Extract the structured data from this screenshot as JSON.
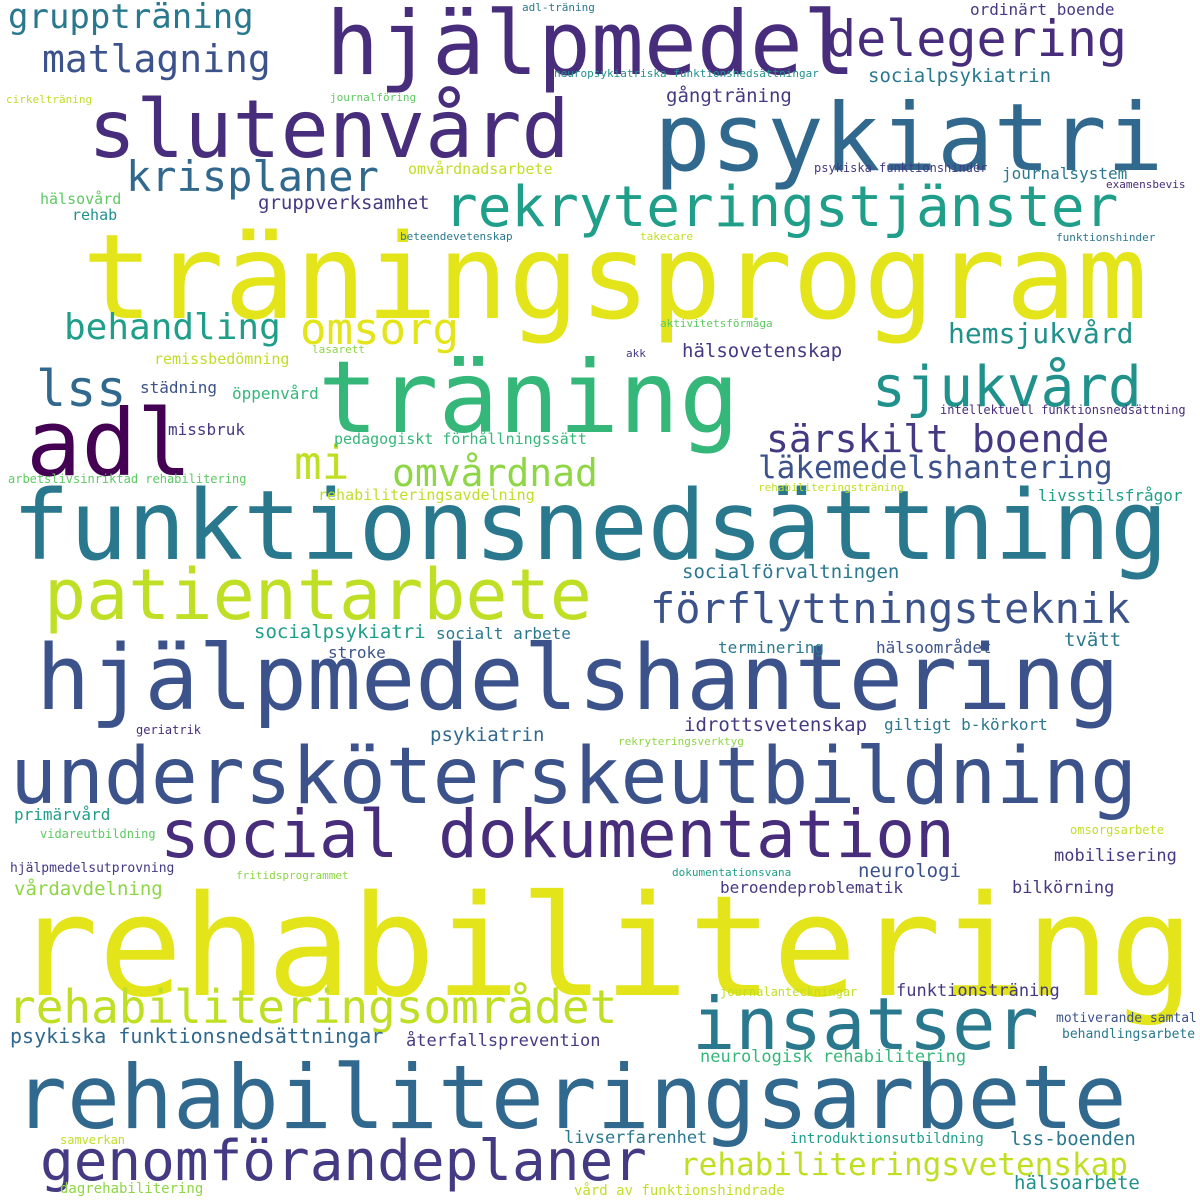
{
  "palette": {
    "c1": "#e3e419",
    "c2": "#bfdf25",
    "c3": "#8ed645",
    "c4": "#5ec962",
    "c5": "#35b779",
    "c6": "#1f9e89",
    "c7": "#21918c",
    "c8": "#2a788e",
    "c9": "#31688e",
    "c10": "#3b528b",
    "c11": "#443a83",
    "c12": "#472d7b",
    "c13": "#440154"
  },
  "words": [
    {
      "text": "rehabilitering",
      "color": "c1"
    },
    {
      "text": "träningsprogram",
      "color": "c1"
    },
    {
      "text": "hjälpmedelshantering",
      "color": "c10"
    },
    {
      "text": "funktionsnedsättning",
      "color": "c8"
    },
    {
      "text": "rehabiliteringsarbete",
      "color": "c9"
    },
    {
      "text": "undersköterskeutbildning",
      "color": "c10"
    },
    {
      "text": "psykiatri",
      "color": "c9"
    },
    {
      "text": "hjälpmedel",
      "color": "c12"
    },
    {
      "text": "slutenvård",
      "color": "c12"
    },
    {
      "text": "träning",
      "color": "c5"
    },
    {
      "text": "adl",
      "color": "c13"
    },
    {
      "text": "social dokumentation",
      "color": "c12"
    },
    {
      "text": "patientarbete",
      "color": "c2"
    },
    {
      "text": "rekryteringstjänster",
      "color": "c6"
    },
    {
      "text": "insatser",
      "color": "c8"
    },
    {
      "text": "genomförandeplaner",
      "color": "c11"
    },
    {
      "text": "rehabiliteringsområdet",
      "color": "c2"
    },
    {
      "text": "delegering",
      "color": "c12"
    },
    {
      "text": "sjukvård",
      "color": "c7"
    },
    {
      "text": "förflyttningsteknik",
      "color": "c10"
    },
    {
      "text": "krisplaner",
      "color": "c9"
    },
    {
      "text": "matlagning",
      "color": "c10"
    },
    {
      "text": "gruppträning",
      "color": "c8"
    },
    {
      "text": "lss",
      "color": "c9"
    },
    {
      "text": "behandling",
      "color": "c6"
    },
    {
      "text": "omsorg",
      "color": "c1"
    },
    {
      "text": "mi",
      "color": "c2"
    },
    {
      "text": "omvårdnad",
      "color": "c3"
    },
    {
      "text": "särskilt boende",
      "color": "c11"
    },
    {
      "text": "rehabiliteringsvetenskap",
      "color": "c2"
    },
    {
      "text": "läkemedelshantering",
      "color": "c10"
    },
    {
      "text": "hemsjukvård",
      "color": "c7"
    },
    {
      "text": "psykiska funktionsnedsättningar",
      "color": "c9"
    },
    {
      "text": "gruppverksamhet",
      "color": "c11"
    },
    {
      "text": "gångträning",
      "color": "c11"
    },
    {
      "text": "socialpsykiatrin",
      "color": "c8"
    },
    {
      "text": "hälsovetenskap",
      "color": "c11"
    },
    {
      "text": "socialförvaltningen",
      "color": "c8"
    },
    {
      "text": "socialpsykiatri",
      "color": "c6"
    },
    {
      "text": "idrottsvetenskap",
      "color": "c11"
    },
    {
      "text": "giltigt b-körkort",
      "color": "c8"
    },
    {
      "text": "psykiatrin",
      "color": "c9"
    },
    {
      "text": "neurologi",
      "color": "c10"
    },
    {
      "text": "beroendeproblematik",
      "color": "c11"
    },
    {
      "text": "vårdavdelning",
      "color": "c3"
    },
    {
      "text": "primärvård",
      "color": "c6"
    },
    {
      "text": "mobilisering",
      "color": "c11"
    },
    {
      "text": "bilkörning",
      "color": "c11"
    },
    {
      "text": "funktionsträning",
      "color": "c11"
    },
    {
      "text": "återfallsprevention",
      "color": "c11"
    },
    {
      "text": "neurologisk rehabilitering",
      "color": "c5"
    },
    {
      "text": "livserfarenhet",
      "color": "c8"
    },
    {
      "text": "lss-boenden",
      "color": "c8"
    },
    {
      "text": "hälsoarbete",
      "color": "c7"
    },
    {
      "text": "tvätt",
      "color": "c8"
    },
    {
      "text": "hälsoområdet",
      "color": "c10"
    },
    {
      "text": "terminering",
      "color": "c8"
    },
    {
      "text": "stroke",
      "color": "c10"
    },
    {
      "text": "socialt arbete",
      "color": "c8"
    },
    {
      "text": "pedagogiskt förhållningssätt",
      "color": "c5"
    },
    {
      "text": "rehabiliteringsavdelning",
      "color": "c2"
    },
    {
      "text": "livsstilsfrågor",
      "color": "c6"
    },
    {
      "text": "missbruk",
      "color": "c11"
    },
    {
      "text": "städning",
      "color": "c10"
    },
    {
      "text": "öppenvård",
      "color": "c5"
    },
    {
      "text": "remissbedömning",
      "color": "c2"
    },
    {
      "text": "journalsystem",
      "color": "c8"
    },
    {
      "text": "omvårdnadsarbete",
      "color": "c2"
    },
    {
      "text": "hälsovård",
      "color": "c4"
    },
    {
      "text": "rehab",
      "color": "c7"
    },
    {
      "text": "ordinärt boende",
      "color": "c11"
    },
    {
      "text": "introduktionsutbildning",
      "color": "c6"
    },
    {
      "text": "vård av funktionshindrade",
      "color": "c2"
    },
    {
      "text": "dagrehabilitering",
      "color": "c3"
    },
    {
      "text": "samverkan",
      "color": "c2"
    },
    {
      "text": "motiverande samtal",
      "color": "c10"
    },
    {
      "text": "behandlingsarbete",
      "color": "c8"
    },
    {
      "text": "journalanteckningar",
      "color": "c2"
    },
    {
      "text": "dokumentationsvana",
      "color": "c6"
    },
    {
      "text": "fritidsprogrammet",
      "color": "c3"
    },
    {
      "text": "hjälpmedelsutprovning",
      "color": "c11"
    },
    {
      "text": "vidareutbildning",
      "color": "c4"
    },
    {
      "text": "omsorgsarbete",
      "color": "c2"
    },
    {
      "text": "geriatrik",
      "color": "c12"
    },
    {
      "text": "rekryteringsverktyg",
      "color": "c3"
    },
    {
      "text": "arbetslivsinriktad rehabilitering",
      "color": "c4"
    },
    {
      "text": "rehabiliteringsträning",
      "color": "c2"
    },
    {
      "text": "intellektuell funktionsnedsättning",
      "color": "c12"
    },
    {
      "text": "lasarett",
      "color": "c3"
    },
    {
      "text": "akk",
      "color": "c11"
    },
    {
      "text": "aktivitetsförmåga",
      "color": "c4"
    },
    {
      "text": "takecare",
      "color": "c2"
    },
    {
      "text": "beteendevetenskap",
      "color": "c8"
    },
    {
      "text": "funktionshinder",
      "color": "c8"
    },
    {
      "text": "psykiska funktionshinder",
      "color": "c11"
    },
    {
      "text": "examensbevis",
      "color": "c12"
    },
    {
      "text": "cirkelträning",
      "color": "c2"
    },
    {
      "text": "journalföring",
      "color": "c4"
    },
    {
      "text": "neuropsykiatriska funktionsnedsättningar",
      "color": "c7"
    },
    {
      "text": "adl-träning",
      "color": "c8"
    }
  ]
}
